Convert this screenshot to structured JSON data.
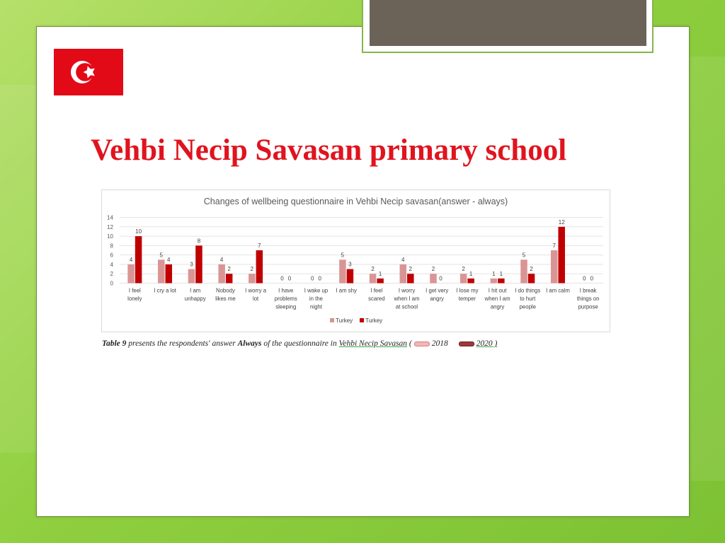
{
  "slide": {
    "title": "Vehbi Necip Savasan primary school",
    "flag_icon": "turkey-flag-icon",
    "caption": {
      "table_ref": "Table 9",
      "text_1": " presents the respondents' answer ",
      "always": "Always",
      "text_2": " of the questionnaire in ",
      "school": "Vehbi Necip Savasan",
      "paren_open": " (",
      "year1": "2018",
      "year2": "2020",
      "paren_close": " )"
    }
  },
  "colors": {
    "turkey_2018": "#d99594",
    "turkey_2020": "#c00000",
    "title_red": "#e0141e",
    "background_green": "#8fcf3f"
  },
  "chart_data": {
    "type": "bar",
    "title": "Changes of wellbeing questionnaire in Vehbi Necip savasan(answer - always)",
    "ylim": [
      0,
      14
    ],
    "yticks": [
      0,
      2,
      4,
      6,
      8,
      10,
      12,
      14
    ],
    "grid": true,
    "legend_position": "bottom",
    "categories": [
      [
        "I feel",
        "lonely"
      ],
      [
        "I cry a lot"
      ],
      [
        "I am",
        "unhappy"
      ],
      [
        "Nobody",
        "likes me"
      ],
      [
        "I worry a",
        "lot"
      ],
      [
        "I have",
        "problems",
        "sleeping"
      ],
      [
        "I wake up",
        "in the",
        "night"
      ],
      [
        "I am shy"
      ],
      [
        "I feel",
        "scared"
      ],
      [
        "I worry",
        "when  I am",
        "at school"
      ],
      [
        "I get very",
        "angry"
      ],
      [
        "I lose my",
        "temper"
      ],
      [
        "I hit out",
        "when I am",
        "angry"
      ],
      [
        "I do things",
        "to hurt",
        "people"
      ],
      [
        "I am calm"
      ],
      [
        "I break",
        "things on",
        "purpose"
      ]
    ],
    "series": [
      {
        "name": "Turkey",
        "values": [
          4,
          5,
          3,
          4,
          2,
          0,
          0,
          5,
          2,
          4,
          2,
          2,
          1,
          5,
          7,
          0
        ]
      },
      {
        "name": "Turkey",
        "values": [
          10,
          4,
          8,
          2,
          7,
          0,
          0,
          3,
          1,
          2,
          0,
          1,
          1,
          2,
          12,
          0
        ]
      }
    ]
  }
}
